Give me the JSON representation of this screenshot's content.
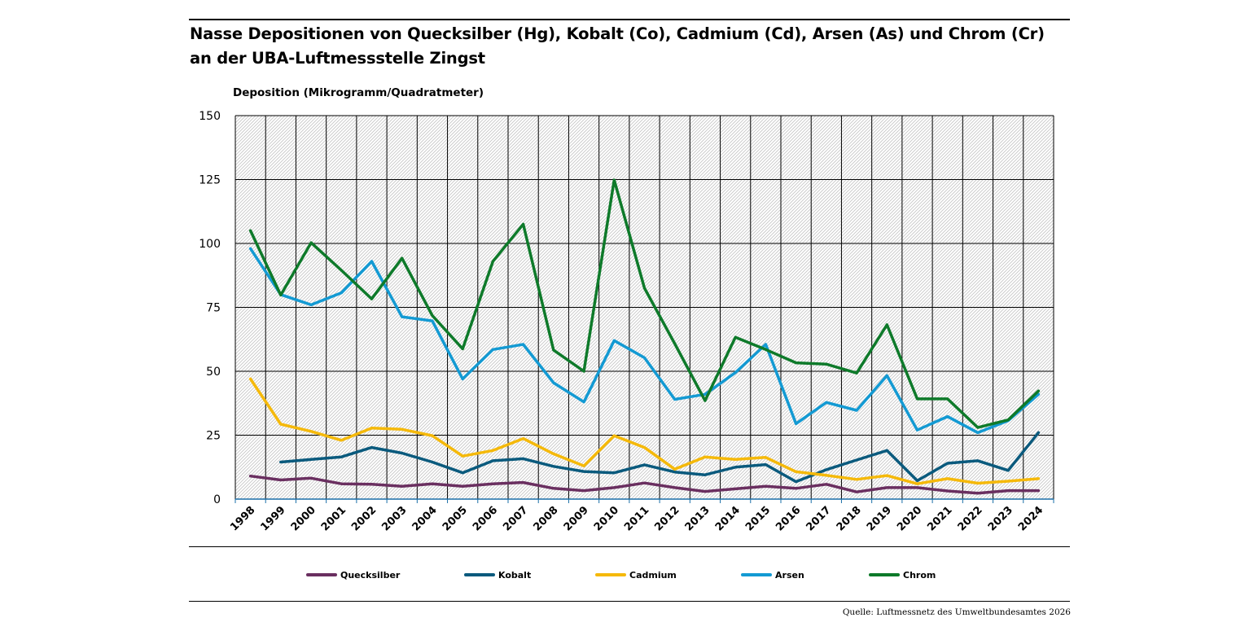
{
  "title": "Nasse Depositionen von Quecksilber (Hg), Kobalt (Co), Cadmium (Cd), Arsen (As) und Chrom (Cr) an der UBA-Luftmessstelle Zingst",
  "source": "Quelle: Luftmessnetz des Umweltbundesamtes 2026",
  "colors": {
    "Quecksilber": "#6a2f60",
    "Kobalt": "#0a5a7d",
    "Cadmium": "#f5b90a",
    "Arsen": "#139ad3",
    "Chrom": "#0e7a2a"
  },
  "chart_data": {
    "type": "line",
    "title": "Nasse Depositionen von Quecksilber (Hg), Kobalt (Co), Cadmium (Cd), Arsen (As) und Chrom (Cr) an der UBA-Luftmessstelle Zingst",
    "ylabel": "Deposition (Mikrogramm/Quadratmeter)",
    "xlabel": "",
    "ylim": [
      0,
      150
    ],
    "yticks": [
      0,
      25,
      50,
      75,
      100,
      125,
      150
    ],
    "grid": true,
    "legend_position": "bottom",
    "categories": [
      "1998",
      "1999",
      "2000",
      "2001",
      "2002",
      "2003",
      "2004",
      "2005",
      "2006",
      "2007",
      "2008",
      "2009",
      "2010",
      "2011",
      "2012",
      "2013",
      "2014",
      "2015",
      "2016",
      "2017",
      "2018",
      "2019",
      "2020",
      "2021",
      "2022",
      "2023",
      "2024"
    ],
    "series": [
      {
        "name": "Quecksilber",
        "values": [
          9,
          7.5,
          8.2,
          6,
          5.8,
          5,
          6,
          5,
          6,
          6.5,
          4.2,
          3.3,
          4.5,
          6.3,
          4.5,
          3,
          4,
          5,
          4.2,
          5.8,
          2.8,
          4.5,
          4.5,
          3.2,
          2.3,
          3.3,
          3.3
        ]
      },
      {
        "name": "Kobalt",
        "values": [
          null,
          14.5,
          15.5,
          16.5,
          20.2,
          18,
          14.5,
          10.3,
          15,
          15.8,
          12.8,
          10.8,
          10.3,
          13.4,
          10.6,
          9.5,
          12.5,
          13.5,
          6.8,
          11.5,
          15.3,
          19,
          7.2,
          14,
          15,
          11.2,
          26
        ]
      },
      {
        "name": "Cadmium",
        "values": [
          47,
          29.3,
          26.5,
          23,
          27.8,
          27.3,
          24.8,
          16.8,
          19,
          23.7,
          17.7,
          13,
          24.8,
          20.2,
          11.7,
          16.5,
          15.5,
          16.3,
          10.7,
          9.3,
          7.7,
          9.2,
          6,
          8,
          6.2,
          7,
          8
        ]
      },
      {
        "name": "Arsen",
        "values": [
          98,
          80,
          76,
          80.7,
          93,
          71.3,
          69.7,
          47,
          58.5,
          60.5,
          45.5,
          38,
          62,
          55.3,
          39,
          41,
          49.5,
          60.5,
          29.5,
          37.8,
          34.7,
          48.3,
          27,
          32.3,
          26,
          30.7,
          41
        ]
      },
      {
        "name": "Chrom",
        "values": [
          105,
          79.8,
          100.3,
          89.5,
          78.3,
          94.2,
          71.8,
          58.8,
          93,
          107.5,
          58.3,
          50,
          124.8,
          82.5,
          60.8,
          38.5,
          63.3,
          58.5,
          53.3,
          52.8,
          49.3,
          68.2,
          39.2,
          39.2,
          28,
          31,
          42.3
        ]
      }
    ]
  }
}
